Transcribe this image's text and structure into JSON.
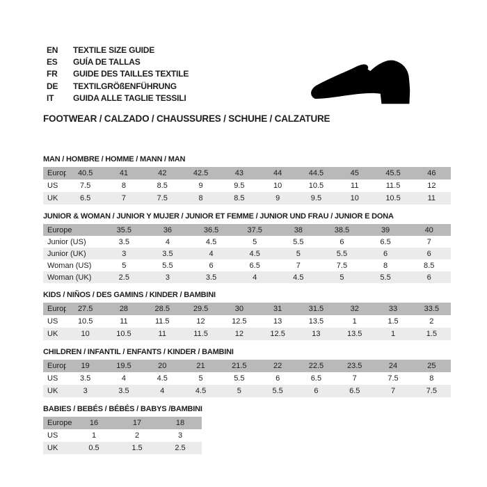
{
  "header": {
    "languages": [
      {
        "code": "EN",
        "label": "TEXTILE SIZE GUIDE"
      },
      {
        "code": "ES",
        "label": "GUÍA DE TALLAS"
      },
      {
        "code": "FR",
        "label": "GUIDE DES TAILLES TEXTILE"
      },
      {
        "code": "DE",
        "label": "TEXTILGRÖßENFÜHRUNG"
      },
      {
        "code": "IT",
        "label": "GUIDA ALLE TAGLIE TESSILI"
      }
    ],
    "category_line": "FOOTWEAR / CALZADO / CHAUSSURES / SCHUHE / CALZATURE",
    "shoe_icon": "black-dress-shoe-silhouette"
  },
  "colors": {
    "header_row_bg": "#b9b9b9",
    "alt_row_bg": "#ebebeb",
    "text": "#1d1d1d",
    "shoe": "#000000"
  },
  "sections": [
    {
      "title": "MAN / HOMBRE / HOMME / MANN / MAN",
      "rows": [
        {
          "label": "Europe",
          "values": [
            "40.5",
            "41",
            "42",
            "42.5",
            "43",
            "44",
            "44.5",
            "45",
            "45.5",
            "46"
          ]
        },
        {
          "label": "US",
          "values": [
            "7.5",
            "8",
            "8.5",
            "9",
            "9.5",
            "10",
            "10.5",
            "11",
            "11.5",
            "12"
          ]
        },
        {
          "label": "UK",
          "values": [
            "6.5",
            "7",
            "7.5",
            "8",
            "8.5",
            "9",
            "9.5",
            "10",
            "10.5",
            "11"
          ]
        }
      ]
    },
    {
      "title": "JUNIOR & WOMAN / JUNIOR Y MUJER / JUNIOR ET FEMME / JUNIOR UND FRAU / JUNIOR E DONA",
      "rows": [
        {
          "label": "Europe",
          "values": [
            "35.5",
            "36",
            "36.5",
            "37.5",
            "38",
            "38.5",
            "39",
            "40"
          ]
        },
        {
          "label": "Junior (US)",
          "values": [
            "3.5",
            "4",
            "4.5",
            "5",
            "5.5",
            "6",
            "6.5",
            "7"
          ]
        },
        {
          "label": "Junior (UK)",
          "values": [
            "3",
            "3.5",
            "4",
            "4.5",
            "5",
            "5.5",
            "6",
            "6"
          ]
        },
        {
          "label": "Woman (US)",
          "values": [
            "5",
            "5.5",
            "6",
            "6.5",
            "7",
            "7.5",
            "8",
            "8.5"
          ]
        },
        {
          "label": "Woman (UK)",
          "values": [
            "2.5",
            "3",
            "3.5",
            "4",
            "4.5",
            "5",
            "5.5",
            "6"
          ]
        }
      ]
    },
    {
      "title": "KIDS / NIÑOS / DES GAMINS / KINDER / BAMBINI",
      "rows": [
        {
          "label": "Europe",
          "values": [
            "27.5",
            "28",
            "28.5",
            "29.5",
            "30",
            "31",
            "31.5",
            "32",
            "33",
            "33.5"
          ]
        },
        {
          "label": "US",
          "values": [
            "10.5",
            "11",
            "11.5",
            "12",
            "12.5",
            "13",
            "13.5",
            "1",
            "1.5",
            "2"
          ]
        },
        {
          "label": "UK",
          "values": [
            "10",
            "10.5",
            "11",
            "11.5",
            "12",
            "12.5",
            "13",
            "13.5",
            "1",
            "1.5"
          ]
        }
      ]
    },
    {
      "title": "CHILDREN / INFANTIL / ENFANTS / KINDER / BAMBINI",
      "rows": [
        {
          "label": "Europe",
          "values": [
            "19",
            "19.5",
            "20",
            "21",
            "21.5",
            "22",
            "22.5",
            "23.5",
            "24",
            "25"
          ]
        },
        {
          "label": "US",
          "values": [
            "3.5",
            "4",
            "4.5",
            "5",
            "5.5",
            "6",
            "6.5",
            "7",
            "7.5",
            "8"
          ]
        },
        {
          "label": "UK",
          "values": [
            "3",
            "3.5",
            "4",
            "4.5",
            "5",
            "5.5",
            "6",
            "6.5",
            "7",
            "7.5"
          ]
        }
      ]
    },
    {
      "title": "BABIES  / BEBÉS / BÉBÉS / BABYS /BAMBINI",
      "rows": [
        {
          "label": "Europe",
          "values": [
            "16",
            "17",
            "18"
          ]
        },
        {
          "label": "US",
          "values": [
            "1",
            "2",
            "3"
          ]
        },
        {
          "label": "UK",
          "values": [
            "0.5",
            "1.5",
            "2.5"
          ]
        }
      ]
    }
  ]
}
